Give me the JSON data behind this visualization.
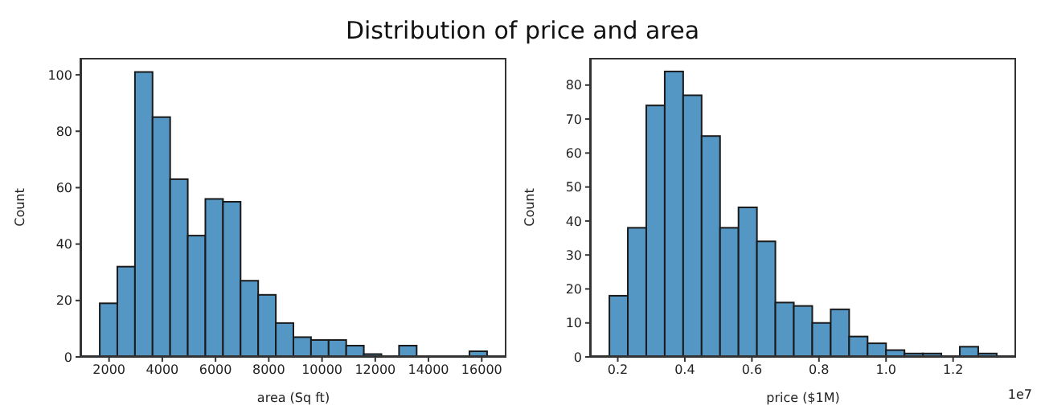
{
  "chart_data": [
    {
      "type": "histogram",
      "title": "Distribution of price and area",
      "xlabel": "area (Sq ft)",
      "ylabel": "Count",
      "color": "#5497c5",
      "bins": [
        1650,
        2311,
        2973,
        3634,
        4295,
        4957,
        5618,
        6280,
        6941,
        7602,
        8264,
        8925,
        9586,
        10248,
        10909,
        11570,
        12232,
        12893,
        13555,
        14216,
        14877,
        15539,
        16200
      ],
      "values": [
        19,
        32,
        101,
        85,
        63,
        43,
        56,
        55,
        27,
        22,
        12,
        7,
        6,
        6,
        4,
        1,
        0,
        4,
        0,
        0,
        0,
        2
      ],
      "xlim": [
        923,
        16927
      ],
      "xticks": [
        2000,
        4000,
        6000,
        8000,
        10000,
        12000,
        14000,
        16000
      ],
      "ylim": [
        0,
        106
      ],
      "yticks": [
        0,
        20,
        40,
        60,
        80,
        100
      ]
    },
    {
      "type": "histogram",
      "xlabel": "price ($1M)",
      "ylabel": "Count",
      "color": "#5497c5",
      "annotations": [
        "1e7"
      ],
      "bins": [
        0.175,
        0.23,
        0.285,
        0.34,
        0.395,
        0.45,
        0.505,
        0.56,
        0.615,
        0.67,
        0.725,
        0.78,
        0.835,
        0.89,
        0.945,
        1.0,
        1.055,
        1.11,
        1.165,
        1.22,
        1.275,
        1.33
      ],
      "values": [
        18,
        38,
        74,
        84,
        77,
        65,
        38,
        44,
        34,
        16,
        15,
        10,
        14,
        6,
        4,
        2,
        1,
        1,
        0,
        3,
        1
      ],
      "xlim": [
        0.11725,
        1.38775
      ],
      "xticks": [
        0.2,
        0.4,
        0.6,
        0.8,
        {
          "value": 1.0,
          "label": "1.0"
        },
        1.2
      ],
      "ylim": [
        0,
        88
      ],
      "yticks": [
        0,
        10,
        20,
        30,
        40,
        50,
        60,
        70,
        80
      ]
    }
  ]
}
